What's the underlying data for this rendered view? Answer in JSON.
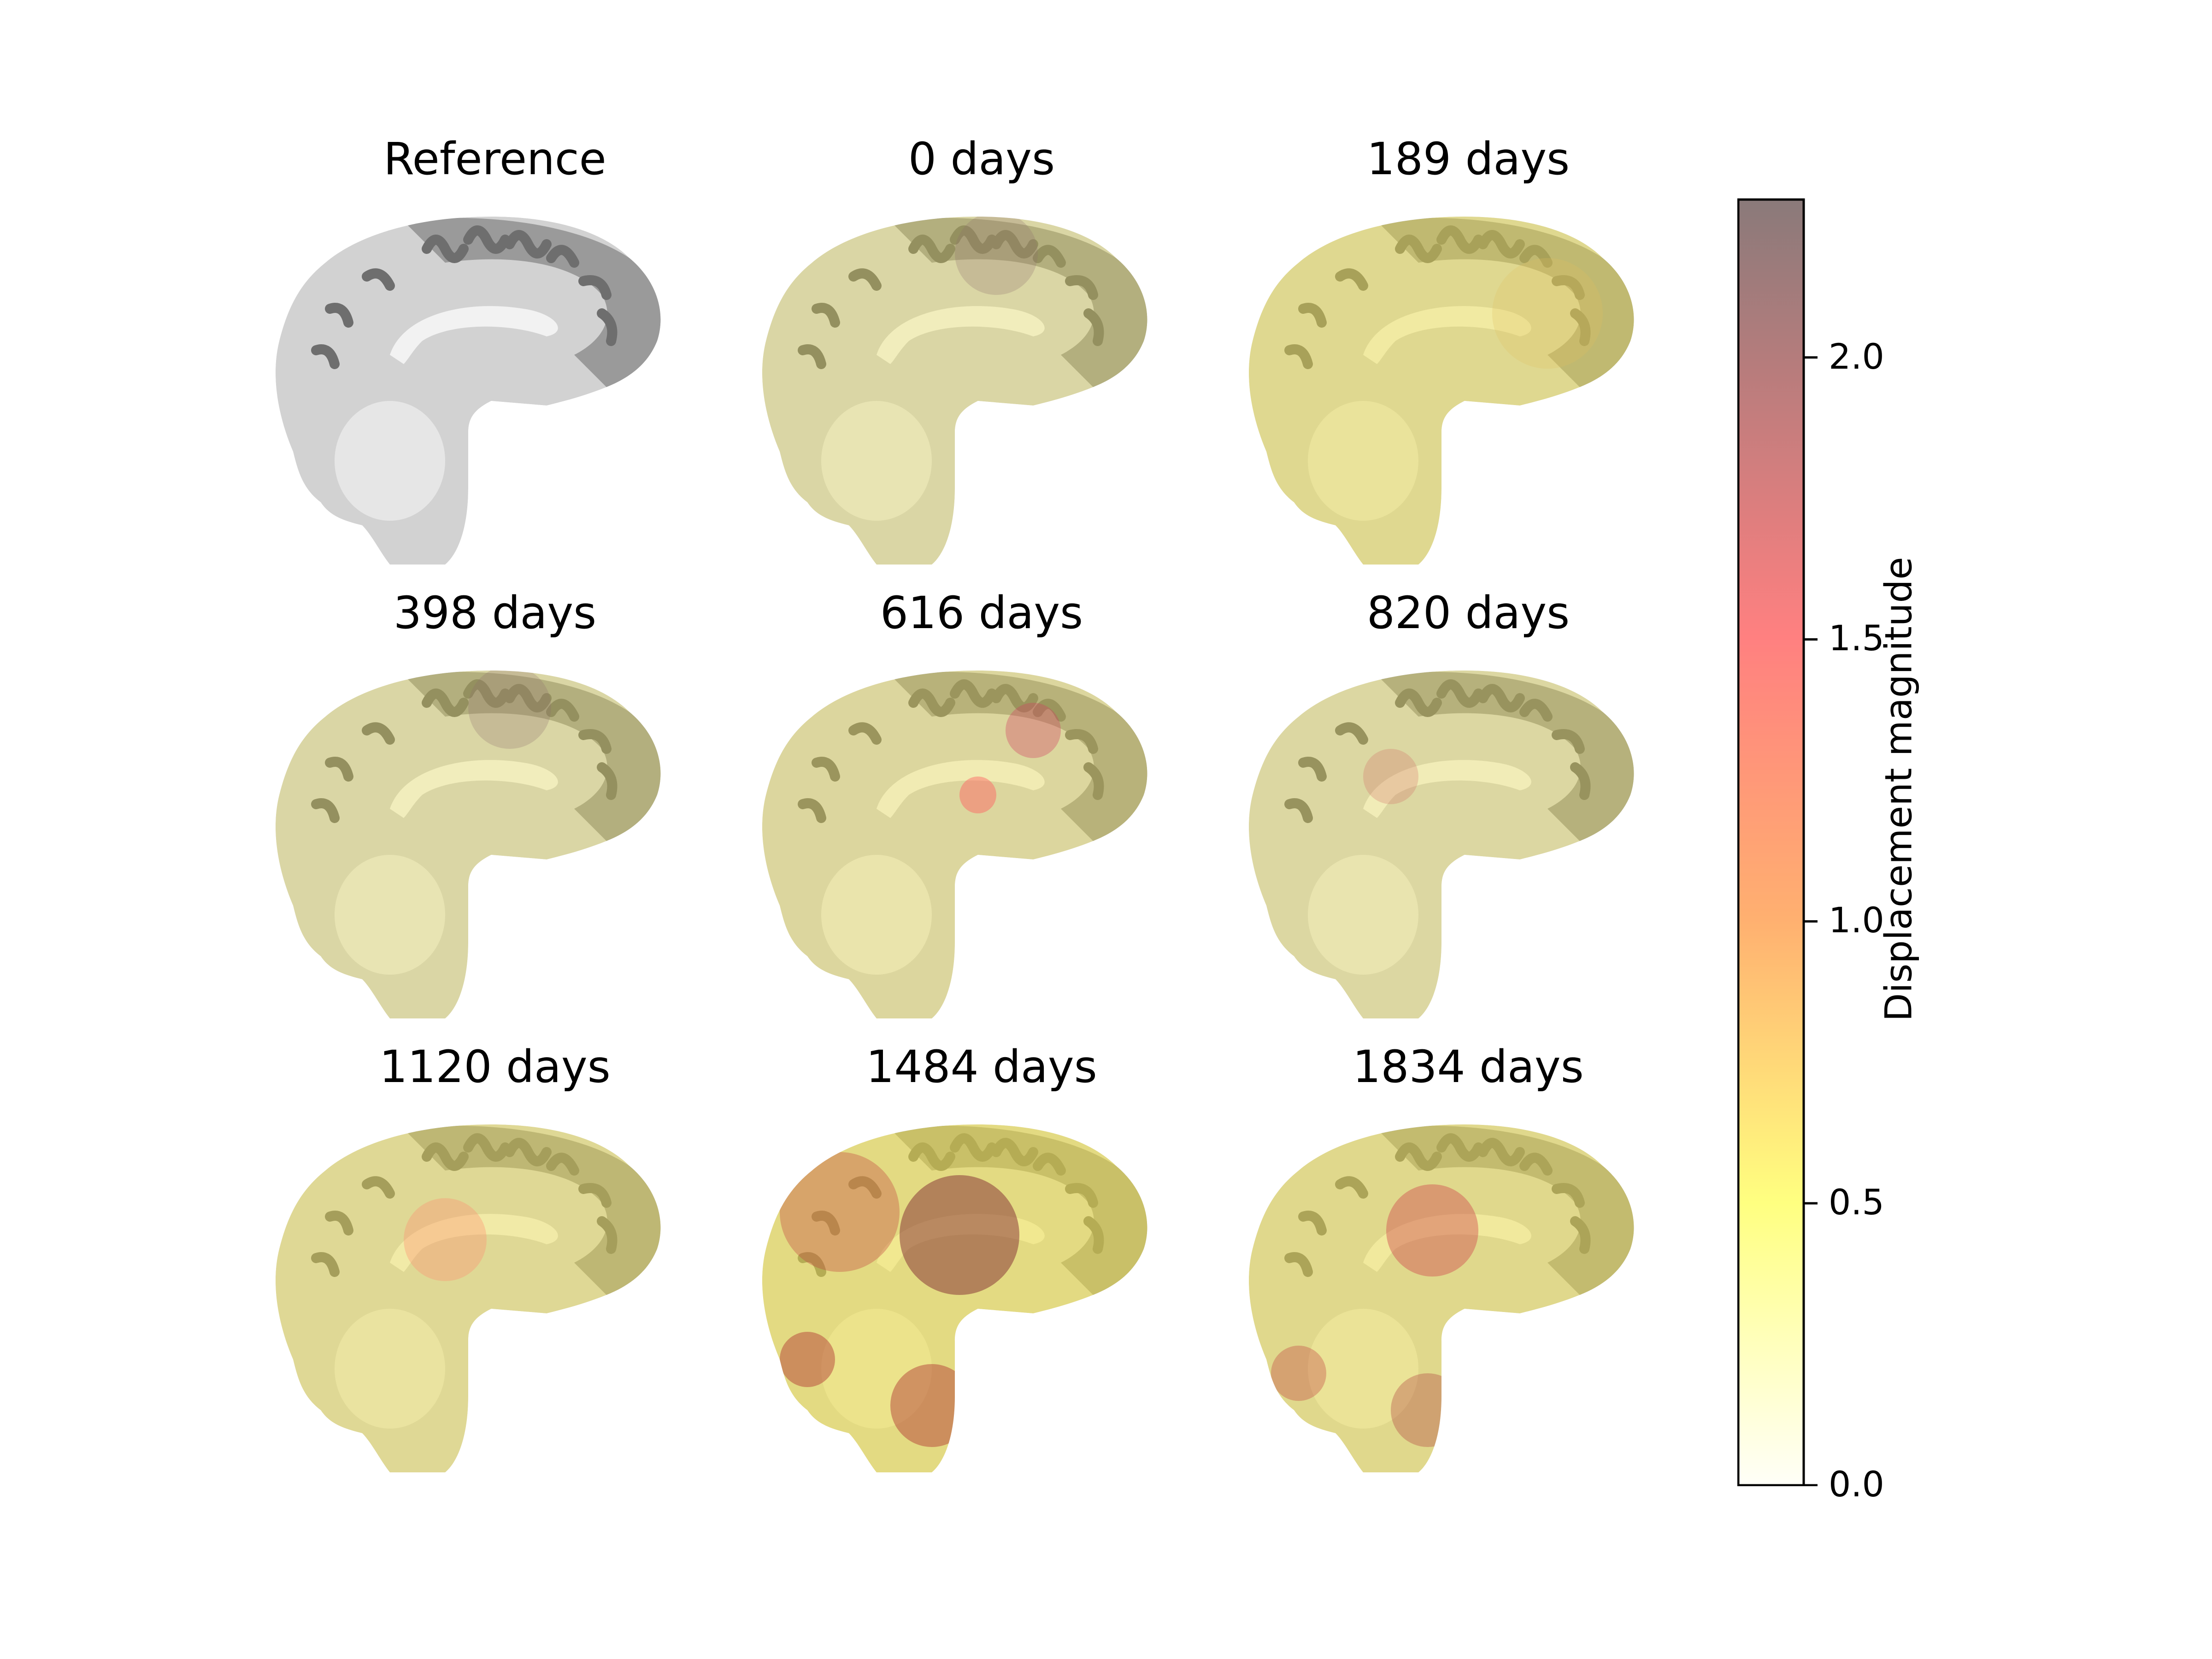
{
  "figure": {
    "panels": [
      {
        "title": "Reference",
        "overlay": "none"
      },
      {
        "title": "0 days",
        "overlay": "low"
      },
      {
        "title": "189 days",
        "overlay": "mid"
      },
      {
        "title": "398 days",
        "overlay": "low"
      },
      {
        "title": "616 days",
        "overlay": "low-hot"
      },
      {
        "title": "820 days",
        "overlay": "low-warm"
      },
      {
        "title": "1120 days",
        "overlay": "mid-warm"
      },
      {
        "title": "1484 days",
        "overlay": "high"
      },
      {
        "title": "1834 days",
        "overlay": "mid-high"
      }
    ],
    "colorbar": {
      "label": "Displacement magnitude",
      "min": 0.0,
      "max": 2.28,
      "ticks": [
        "0.0",
        "0.5",
        "1.0",
        "1.5",
        "2.0"
      ],
      "tick_values": [
        0.0,
        0.5,
        1.0,
        1.5,
        2.0
      ],
      "colormap": "hot_r",
      "colors": [
        "#fffff8",
        "#ffff80",
        "#ffb070",
        "#ff8080",
        "#8a7a7a"
      ]
    }
  }
}
